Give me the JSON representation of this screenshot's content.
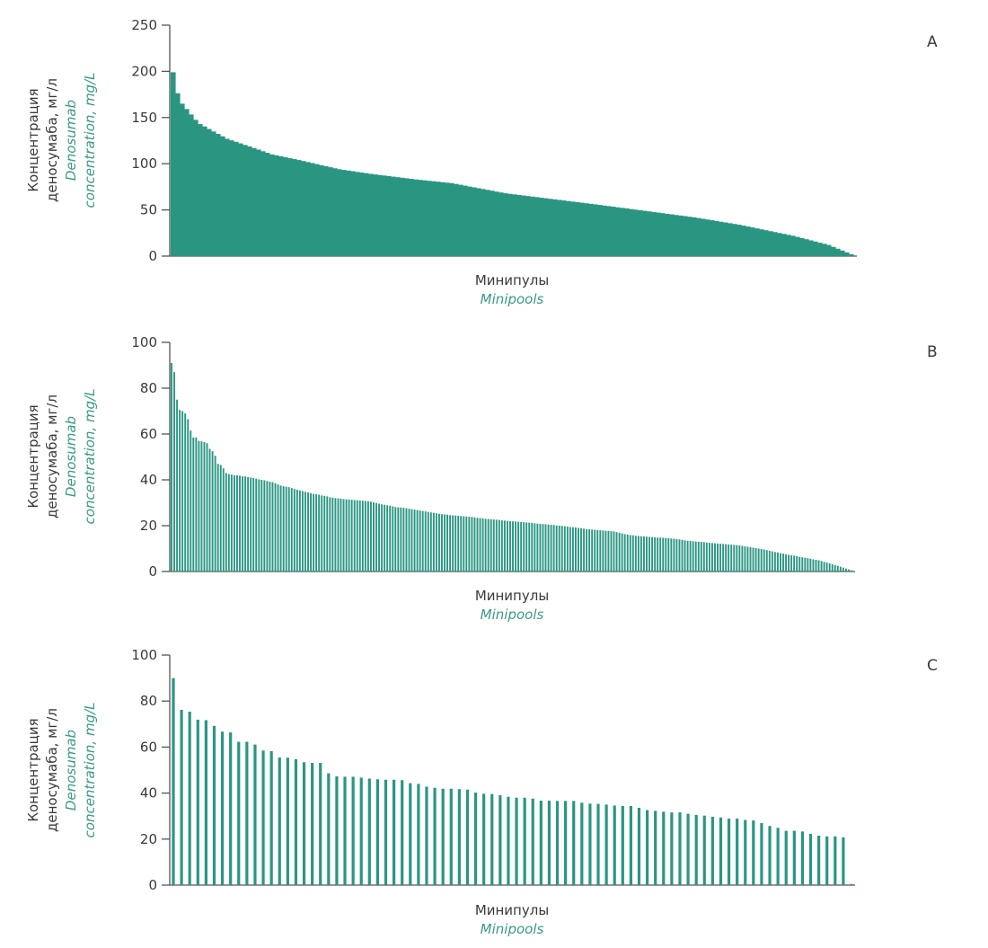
{
  "figure": {
    "colors": {
      "bar": "#2a9682",
      "axis": "#555555",
      "text": "#3a3a3a",
      "english_label": "#3a9a86"
    }
  },
  "chart_data": [
    {
      "panel": "A",
      "type": "area",
      "title": "",
      "ylabel_ru_line1": "Концентрация",
      "ylabel_ru_line2": "деносумаба, мг/л",
      "ylabel_en_line1": "Denosumab",
      "ylabel_en_line2": "concentration, mg/L",
      "xlabel_ru": "Минипулы",
      "xlabel_en": "Minipools",
      "ylim": [
        0,
        250
      ],
      "yticks": [
        "0",
        "50",
        "100",
        "150",
        "200",
        "250"
      ],
      "ytick_values": [
        0,
        50,
        100,
        150,
        200,
        250
      ],
      "grid": false,
      "values": [
        199,
        176.3,
        165,
        159.2,
        153.3,
        147.5,
        142.9,
        140.3,
        137.6,
        134.9,
        132.3,
        129.7,
        127,
        125.3,
        123.7,
        122,
        120.3,
        118.7,
        117,
        115.3,
        113.5,
        111.8,
        110,
        109,
        108,
        107,
        106,
        105,
        104,
        102.9,
        101.8,
        100.7,
        99.6,
        98.4,
        97.3,
        96.2,
        95.1,
        94,
        93.3,
        92.6,
        91.9,
        91.1,
        90.4,
        89.7,
        89,
        88.4,
        87.8,
        87.2,
        86.6,
        86,
        85.4,
        84.8,
        84.2,
        83.6,
        83,
        82.5,
        82,
        81.5,
        81,
        80.5,
        80,
        79.5,
        79,
        78.1,
        77.2,
        76.3,
        75.3,
        74.4,
        73.5,
        72.6,
        71.7,
        70.8,
        69.8,
        68.9,
        68,
        67.4,
        66.8,
        66.2,
        65.6,
        65,
        64.4,
        63.8,
        63.2,
        62.6,
        62,
        61.4,
        60.8,
        60.2,
        59.6,
        59,
        58.4,
        57.8,
        57.2,
        56.6,
        56,
        55.4,
        54.7,
        54.1,
        53.5,
        52.8,
        52.2,
        51.6,
        50.9,
        50.3,
        49.6,
        49,
        48.4,
        47.7,
        47.1,
        46.5,
        45.8,
        45.2,
        44.5,
        43.9,
        43.3,
        42.6,
        42,
        41.2,
        40.4,
        39.6,
        38.8,
        38,
        37.2,
        36.4,
        35.6,
        34.8,
        34,
        33,
        32,
        31,
        30,
        29,
        28,
        27,
        26,
        25,
        24,
        23,
        22,
        20.8,
        19.5,
        18.3,
        17,
        15.8,
        14.5,
        13.3,
        12,
        10,
        8,
        6,
        4,
        2
      ]
    },
    {
      "panel": "B",
      "type": "bar",
      "title": "",
      "ylabel_ru_line1": "Концентрация",
      "ylabel_ru_line2": "деносумаба, мг/л",
      "ylabel_en_line1": "Denosumab",
      "ylabel_en_line2": "concentration, mg/L",
      "xlabel_ru": "Минипулы",
      "xlabel_en": "Minipools",
      "ylim": [
        0,
        100
      ],
      "yticks": [
        "0",
        "20",
        "40",
        "60",
        "80",
        "100"
      ],
      "ytick_values": [
        0,
        20,
        40,
        60,
        80,
        100
      ],
      "grid": false,
      "values": [
        91,
        87,
        75,
        70.5,
        70,
        69,
        66.5,
        61.5,
        58.5,
        58.5,
        57,
        56.8,
        56.5,
        56,
        53.5,
        52.5,
        50.5,
        47,
        46.5,
        45,
        43,
        42.5,
        42.3,
        42,
        42,
        41.8,
        41.5,
        41.5,
        41.2,
        41,
        40.8,
        40.5,
        40.2,
        40,
        39.8,
        39.5,
        39.2,
        39,
        38.5,
        38,
        37.5,
        37.2,
        37,
        36.8,
        36.4,
        36,
        35.7,
        35.4,
        35.1,
        34.8,
        34.5,
        34.2,
        33.9,
        33.7,
        33.5,
        33.2,
        33,
        32.8,
        32.4,
        32.2,
        32,
        31.9,
        31.8,
        31.6,
        31.5,
        31.4,
        31.3,
        31.2,
        31.1,
        31,
        30.9,
        30.8,
        30.7,
        30.5,
        30.2,
        29.9,
        29.6,
        29.3,
        29.1,
        28.9,
        28.7,
        28.4,
        28.1,
        28,
        27.9,
        27.8,
        27.6,
        27.4,
        27.2,
        27,
        26.8,
        26.6,
        26.4,
        26.2,
        26,
        25.8,
        25.6,
        25.4,
        25.2,
        25,
        24.9,
        24.8,
        24.6,
        24.5,
        24.4,
        24.3,
        24.2,
        24.1,
        24,
        23.9,
        23.8,
        23.6,
        23.4,
        23.3,
        23.2,
        23,
        22.9,
        22.8,
        22.7,
        22.6,
        22.5,
        22.3,
        22.2,
        22.1,
        22,
        21.9,
        21.8,
        21.7,
        21.6,
        21.5,
        21.4,
        21.3,
        21.2,
        21,
        20.9,
        20.8,
        20.7,
        20.6,
        20.5,
        20.4,
        20.3,
        20.1,
        20,
        19.9,
        19.8,
        19.6,
        19.4,
        19.3,
        19.2,
        19,
        18.9,
        18.7,
        18.5,
        18.4,
        18.3,
        18.2,
        18.1,
        18,
        17.9,
        17.8,
        17.7,
        17.6,
        17.5,
        17.2,
        16.9,
        16.6,
        16.3,
        16.1,
        15.9,
        15.8,
        15.6,
        15.5,
        15.4,
        15.3,
        15.2,
        15.1,
        15,
        14.9,
        14.8,
        14.8,
        14.7,
        14.6,
        14.5,
        14.4,
        14.3,
        14.1,
        14,
        13.8,
        13.6,
        13.4,
        13.3,
        13.2,
        13.1,
        13,
        12.9,
        12.8,
        12.6,
        12.5,
        12.4,
        12.3,
        12.2,
        12.1,
        12,
        11.9,
        11.8,
        11.7,
        11.6,
        11.5,
        11.4,
        11.2,
        11,
        10.8,
        10.6,
        10.4,
        10.2,
        10,
        9.8,
        9.6,
        9.3,
        9,
        8.8,
        8.5,
        8.3,
        8,
        7.8,
        7.5,
        7.3,
        7.1,
        6.9,
        6.7,
        6.4,
        6.2,
        6,
        5.8,
        5.6,
        5.3,
        5.1,
        4.9,
        4.6,
        4.2,
        3.9,
        3.5,
        3.2,
        2.8,
        2.5,
        2.1,
        1.7,
        1.3,
        0.9,
        0.5
      ]
    },
    {
      "panel": "C",
      "type": "bar",
      "title": "",
      "ylabel_ru_line1": "Концентрация",
      "ylabel_ru_line2": "деносумаба, мг/л",
      "ylabel_en_line1": "Denosumab",
      "ylabel_en_line2": "concentration, mg/L",
      "xlabel_ru": "Минипулы",
      "xlabel_en": "Minipools",
      "ylim": [
        0,
        100
      ],
      "yticks": [
        "0",
        "20",
        "40",
        "60",
        "80",
        "100"
      ],
      "ytick_values": [
        0,
        20,
        40,
        60,
        80,
        100
      ],
      "grid": false,
      "values": [
        90,
        76.2,
        75.4,
        71.9,
        71.7,
        69.2,
        66.7,
        66.4,
        62.3,
        62.3,
        61.1,
        58.5,
        58.2,
        55.5,
        55.4,
        54.7,
        53.4,
        53.1,
        53.1,
        48.6,
        47.3,
        47.1,
        47.1,
        46.7,
        46.3,
        46.0,
        45.8,
        45.8,
        45.6,
        44.3,
        44.0,
        42.8,
        42.3,
        41.9,
        41.9,
        41.7,
        41.5,
        40.2,
        39.7,
        39.6,
        39.1,
        38.4,
        38.0,
        38.0,
        37.6,
        36.7,
        36.7,
        36.6,
        36.6,
        36.6,
        35.8,
        35.4,
        35.3,
        35.0,
        34.6,
        34.4,
        34.4,
        33.6,
        32.6,
        32.3,
        31.9,
        31.6,
        31.6,
        31.0,
        30.5,
        30.2,
        29.7,
        29.4,
        28.9,
        28.9,
        28.3,
        28.1,
        27.0,
        25.7,
        24.9,
        23.6,
        23.6,
        23.3,
        22.3,
        21.5,
        21.2,
        21.2,
        20.8,
        0.5
      ]
    }
  ]
}
